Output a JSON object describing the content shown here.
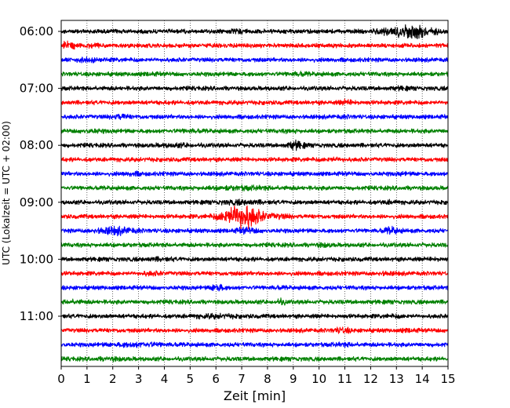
{
  "chart_data": {
    "type": "line",
    "subtype": "helicorder",
    "xlabel": "Zeit  [min]",
    "ylabel": "UTC (Lokalzeit = UTC + 02:00)",
    "xlim": [
      0,
      15
    ],
    "x_ticks": [
      "0",
      "1",
      "2",
      "3",
      "4",
      "5",
      "6",
      "7",
      "8",
      "9",
      "10",
      "11",
      "12",
      "13",
      "14",
      "15"
    ],
    "y_tick_labels": [
      "06:00",
      "07:00",
      "08:00",
      "09:00",
      "10:00",
      "11:00"
    ],
    "grid": {
      "vertical": true,
      "style": "dotted",
      "color": "#000000"
    },
    "trace_interval_min": 15,
    "trace_colors": [
      "#000000",
      "#ff0000",
      "#0000ff",
      "#008000"
    ],
    "traces": [
      {
        "start": "06:00",
        "color": "#000000",
        "bursts": [
          {
            "t": 13.5,
            "amp": 3.6,
            "width": 0.9
          },
          {
            "t": 7.0,
            "amp": 1.3,
            "width": 0.5
          }
        ]
      },
      {
        "start": "06:15",
        "color": "#ff0000",
        "bursts": [
          {
            "t": 0.3,
            "amp": 2.2,
            "width": 0.4
          },
          {
            "t": 1.2,
            "amp": 1.3,
            "width": 0.3
          }
        ]
      },
      {
        "start": "06:30",
        "color": "#0000ff",
        "bursts": [
          {
            "t": 1.0,
            "amp": 1.4,
            "width": 0.5
          }
        ]
      },
      {
        "start": "06:45",
        "color": "#008000",
        "bursts": [
          {
            "t": 9.2,
            "amp": 1.4,
            "width": 0.4
          },
          {
            "t": 3.5,
            "amp": 1.2,
            "width": 0.3
          }
        ]
      },
      {
        "start": "07:00",
        "color": "#000000",
        "bursts": [
          {
            "t": 13.2,
            "amp": 1.3,
            "width": 0.3
          }
        ]
      },
      {
        "start": "07:15",
        "color": "#ff0000",
        "bursts": [
          {
            "t": 11.1,
            "amp": 1.6,
            "width": 0.3
          }
        ]
      },
      {
        "start": "07:30",
        "color": "#0000ff",
        "bursts": [
          {
            "t": 2.3,
            "amp": 1.7,
            "width": 0.3
          },
          {
            "t": 11.0,
            "amp": 1.2,
            "width": 0.3
          }
        ]
      },
      {
        "start": "07:45",
        "color": "#008000",
        "bursts": [
          {
            "t": 1.2,
            "amp": 1.3,
            "width": 0.4
          },
          {
            "t": 5.0,
            "amp": 1.3,
            "width": 0.4
          },
          {
            "t": 8.9,
            "amp": 1.2,
            "width": 0.3
          }
        ]
      },
      {
        "start": "08:00",
        "color": "#000000",
        "bursts": [
          {
            "t": 9.1,
            "amp": 2.4,
            "width": 0.3
          },
          {
            "t": 4.5,
            "amp": 1.3,
            "width": 0.8
          }
        ]
      },
      {
        "start": "08:15",
        "color": "#ff0000",
        "bursts": [
          {
            "t": 10.6,
            "amp": 1.4,
            "width": 0.4
          }
        ]
      },
      {
        "start": "08:30",
        "color": "#0000ff",
        "bursts": [
          {
            "t": 2.8,
            "amp": 1.4,
            "width": 0.3
          },
          {
            "t": 13.2,
            "amp": 1.2,
            "width": 0.3
          }
        ]
      },
      {
        "start": "08:45",
        "color": "#008000",
        "bursts": [
          {
            "t": 7.0,
            "amp": 1.4,
            "width": 1.2
          }
        ]
      },
      {
        "start": "09:00",
        "color": "#000000",
        "bursts": [
          {
            "t": 7.0,
            "amp": 1.5,
            "width": 0.8
          },
          {
            "t": 12.7,
            "amp": 1.3,
            "width": 0.3
          }
        ]
      },
      {
        "start": "09:15",
        "color": "#ff0000",
        "bursts": [
          {
            "t": 7.0,
            "amp": 6.5,
            "width": 0.7
          },
          {
            "t": 8.4,
            "amp": 1.5,
            "width": 0.5
          }
        ]
      },
      {
        "start": "09:30",
        "color": "#0000ff",
        "bursts": [
          {
            "t": 2.1,
            "amp": 2.2,
            "width": 0.7
          },
          {
            "t": 12.8,
            "amp": 2.0,
            "width": 0.3
          },
          {
            "t": 7.2,
            "amp": 1.8,
            "width": 0.4
          }
        ]
      },
      {
        "start": "09:45",
        "color": "#008000",
        "bursts": [
          {
            "t": 10.2,
            "amp": 1.4,
            "width": 0.3
          }
        ]
      },
      {
        "start": "10:00",
        "color": "#000000",
        "bursts": [
          {
            "t": 3.8,
            "amp": 1.3,
            "width": 0.5
          },
          {
            "t": 14.5,
            "amp": 1.2,
            "width": 0.3
          }
        ]
      },
      {
        "start": "10:15",
        "color": "#ff0000",
        "bursts": [
          {
            "t": 3.5,
            "amp": 1.4,
            "width": 0.4
          },
          {
            "t": 12.6,
            "amp": 1.3,
            "width": 0.3
          }
        ]
      },
      {
        "start": "10:30",
        "color": "#0000ff",
        "bursts": [
          {
            "t": 6.05,
            "amp": 2.6,
            "width": 0.2
          },
          {
            "t": 8.4,
            "amp": 1.2,
            "width": 0.3
          }
        ]
      },
      {
        "start": "10:45",
        "color": "#008000",
        "bursts": [
          {
            "t": 8.5,
            "amp": 1.8,
            "width": 0.2
          },
          {
            "t": 0.5,
            "amp": 1.3,
            "width": 0.4
          }
        ]
      },
      {
        "start": "11:00",
        "color": "#000000",
        "bursts": [
          {
            "t": 6.0,
            "amp": 1.4,
            "width": 0.8
          },
          {
            "t": 13.0,
            "amp": 1.2,
            "width": 0.4
          }
        ]
      },
      {
        "start": "11:15",
        "color": "#ff0000",
        "bursts": [
          {
            "t": 10.9,
            "amp": 1.8,
            "width": 0.3
          },
          {
            "t": 13.5,
            "amp": 1.3,
            "width": 0.3
          }
        ]
      },
      {
        "start": "11:30",
        "color": "#0000ff",
        "bursts": [
          {
            "t": 3.0,
            "amp": 1.5,
            "width": 1.0
          },
          {
            "t": 11.0,
            "amp": 1.3,
            "width": 0.4
          }
        ]
      },
      {
        "start": "11:45",
        "color": "#008000",
        "bursts": [
          {
            "t": 2.0,
            "amp": 1.3,
            "width": 0.5
          }
        ]
      }
    ]
  }
}
